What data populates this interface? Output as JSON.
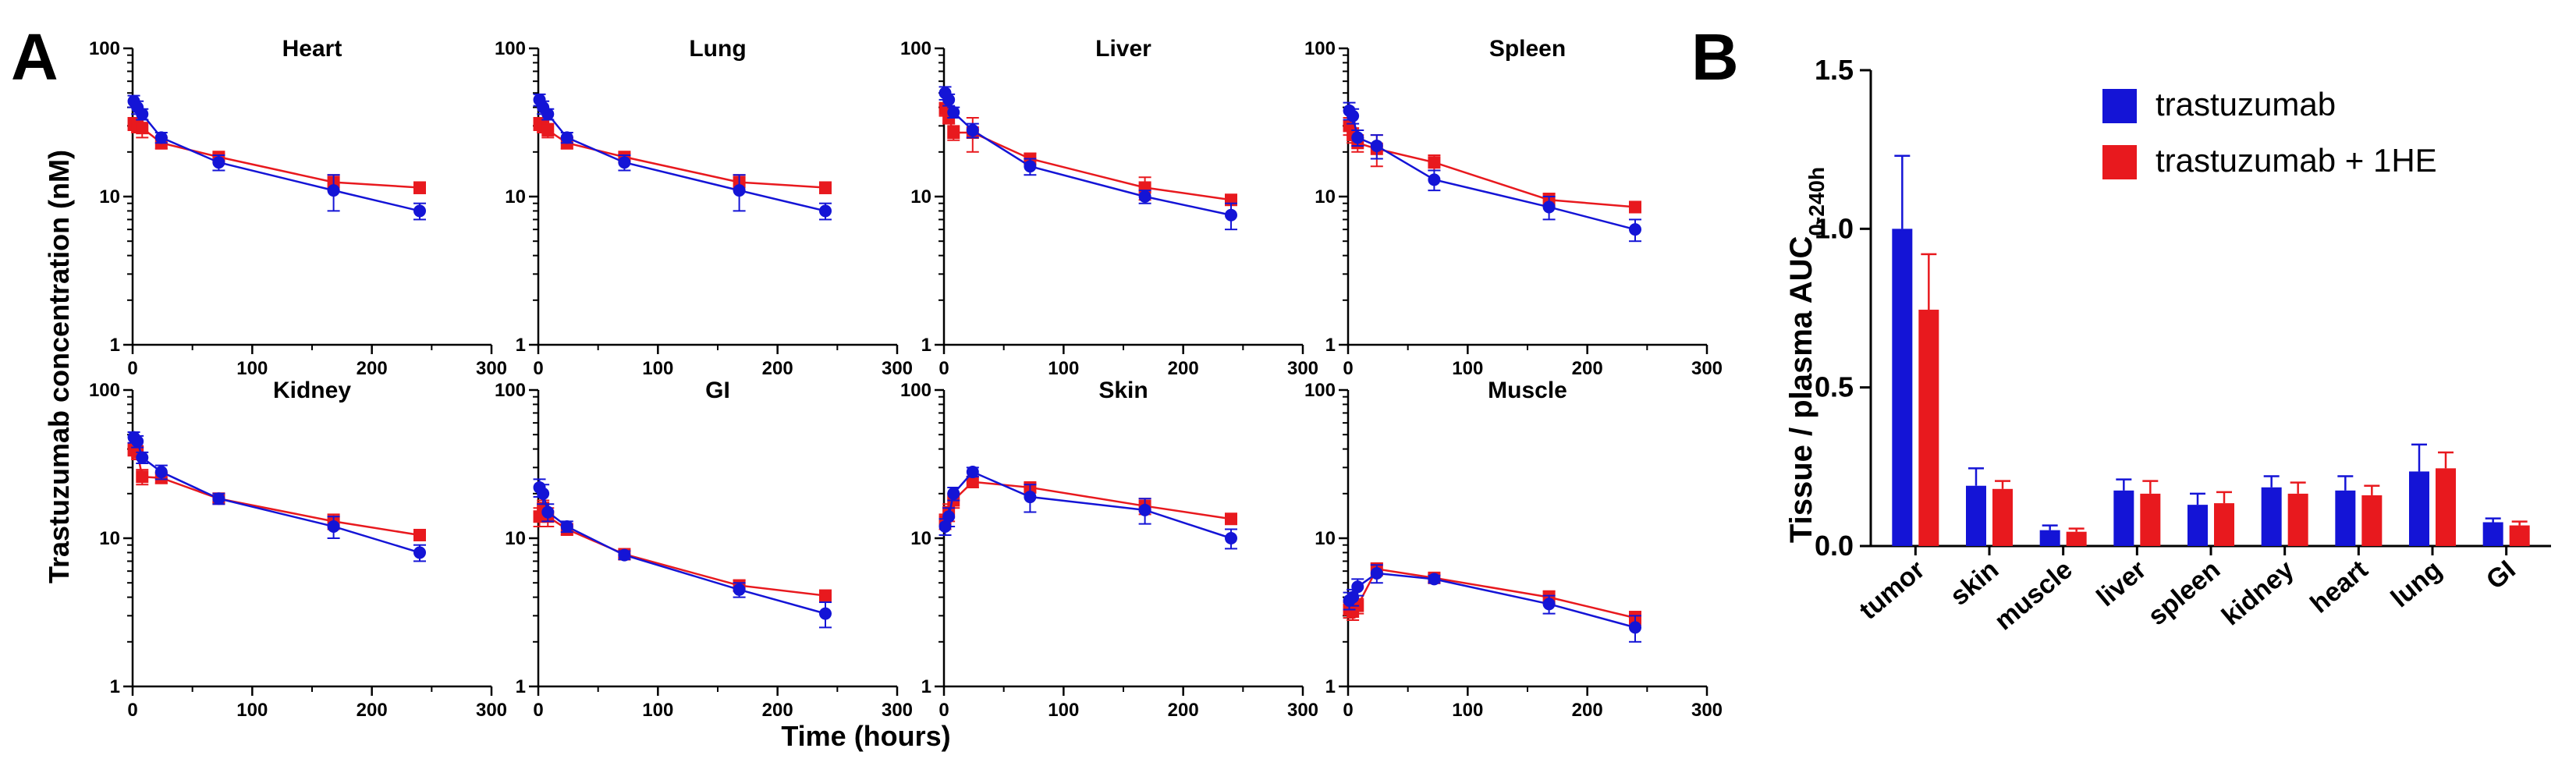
{
  "panel_a_label": "A",
  "panel_b_label": "B",
  "colors": {
    "trastuzumab": "#1414d6",
    "trastuzumab_1he": "#e8191e",
    "axis": "#000000"
  },
  "chart_data": [
    {
      "type": "line",
      "panel": "A",
      "ylabel": "Trastuzumab concentration (nM)",
      "xlabel": "Time (hours)",
      "yscale": "log",
      "ylim": [
        1,
        100
      ],
      "xlim": [
        0,
        300
      ],
      "xticks": [
        0,
        100,
        200,
        300
      ],
      "yticks": [
        1,
        10,
        100
      ],
      "series_names": [
        "trastuzumab",
        "trastuzumab + 1HE"
      ],
      "subplots": [
        {
          "title": "Heart",
          "x": [
            1,
            4,
            8,
            24,
            72,
            168,
            240
          ],
          "series": [
            {
              "name": "trastuzumab",
              "values": [
                44,
                40,
                36,
                25,
                17,
                11,
                8
              ],
              "err": [
                4,
                4,
                3,
                2,
                2,
                3,
                1
              ]
            },
            {
              "name": "trastuzumab + 1HE",
              "values": [
                31,
                30,
                29,
                23,
                18.5,
                12.5,
                11.5
              ],
              "err": [
                3,
                3,
                4,
                2,
                1,
                1.5,
                1
              ]
            }
          ]
        },
        {
          "title": "Lung",
          "x": [
            1,
            4,
            8,
            24,
            72,
            168,
            240
          ],
          "series": [
            {
              "name": "trastuzumab",
              "values": [
                45,
                40,
                36,
                25,
                17,
                11,
                8
              ],
              "err": [
                4,
                4,
                3,
                2,
                2,
                3,
                1
              ]
            },
            {
              "name": "trastuzumab + 1HE",
              "values": [
                31,
                30,
                28,
                23,
                18.5,
                12.5,
                11.5
              ],
              "err": [
                3,
                3,
                3,
                2,
                1,
                1.5,
                1
              ]
            }
          ]
        },
        {
          "title": "Liver",
          "x": [
            1,
            4,
            8,
            24,
            72,
            168,
            240
          ],
          "series": [
            {
              "name": "trastuzumab",
              "values": [
                50,
                45,
                37,
                28,
                16,
                10,
                7.5
              ],
              "err": [
                5,
                4,
                3,
                3,
                2,
                1,
                1.5
              ]
            },
            {
              "name": "trastuzumab + 1HE",
              "values": [
                39,
                34,
                27,
                27,
                18,
                11.5,
                9.5
              ],
              "err": [
                4,
                3,
                3,
                7,
                1.5,
                2,
                0.7
              ]
            }
          ]
        },
        {
          "title": "Spleen",
          "x": [
            1,
            4,
            8,
            24,
            72,
            168,
            240
          ],
          "series": [
            {
              "name": "trastuzumab",
              "values": [
                38,
                35,
                25,
                22,
                13,
                8.5,
                6
              ],
              "err": [
                5,
                4,
                3,
                4,
                2,
                1.5,
                1
              ]
            },
            {
              "name": "trastuzumab + 1HE",
              "values": [
                30,
                26,
                23,
                21,
                17,
                9.5,
                8.5
              ],
              "err": [
                4,
                3,
                3,
                5,
                2,
                1,
                0.7
              ]
            }
          ]
        },
        {
          "title": "Kidney",
          "x": [
            1,
            4,
            8,
            24,
            72,
            168,
            240
          ],
          "series": [
            {
              "name": "trastuzumab",
              "values": [
                48,
                45,
                35,
                28,
                18.5,
                12,
                8
              ],
              "err": [
                4,
                4,
                3,
                3,
                1.5,
                2,
                1
              ]
            },
            {
              "name": "trastuzumab + 1HE",
              "values": [
                40,
                38,
                26,
                25.5,
                18.5,
                13,
                10.5
              ],
              "err": [
                4,
                4,
                3,
                2,
                1,
                1.5,
                0.8
              ]
            }
          ]
        },
        {
          "title": "GI",
          "x": [
            1,
            4,
            8,
            24,
            72,
            168,
            240
          ],
          "series": [
            {
              "name": "trastuzumab",
              "values": [
                22,
                20,
                15,
                12,
                7.7,
                4.5,
                3.1
              ],
              "err": [
                3,
                3,
                2,
                1,
                0.5,
                0.5,
                0.6
              ]
            },
            {
              "name": "trastuzumab + 1HE",
              "values": [
                14,
                16,
                14,
                11.5,
                7.8,
                4.8,
                4.1
              ],
              "err": [
                2,
                2,
                2,
                1,
                0.4,
                0.4,
                0.3
              ]
            }
          ]
        },
        {
          "title": "Skin",
          "x": [
            1,
            4,
            8,
            24,
            72,
            168,
            240
          ],
          "series": [
            {
              "name": "trastuzumab",
              "values": [
                12,
                14,
                20,
                28,
                19,
                15.5,
                10
              ],
              "err": [
                1.5,
                2,
                2,
                2,
                4,
                3,
                1.5
              ]
            },
            {
              "name": "trastuzumab + 1HE",
              "values": [
                13,
                15,
                18,
                24,
                22,
                16.5,
                13.5
              ],
              "err": [
                1.5,
                2,
                2,
                2,
                1.5,
                2,
                1
              ]
            }
          ]
        },
        {
          "title": "Muscle",
          "x": [
            1,
            4,
            8,
            24,
            72,
            168,
            240
          ],
          "series": [
            {
              "name": "trastuzumab",
              "values": [
                3.8,
                4,
                4.7,
                5.8,
                5.3,
                3.6,
                2.5
              ],
              "err": [
                0.5,
                0.5,
                0.6,
                0.8,
                0.3,
                0.5,
                0.5
              ]
            },
            {
              "name": "trastuzumab + 1HE",
              "values": [
                3.3,
                3.2,
                3.5,
                6.2,
                5.4,
                4,
                2.9
              ],
              "err": [
                0.4,
                0.4,
                0.4,
                0.6,
                0.3,
                0.4,
                0.3
              ]
            }
          ]
        }
      ]
    },
    {
      "type": "bar",
      "panel": "B",
      "ylabel": "Tissue / plasma AUC",
      "ylabel_sub": "0-240h",
      "ylim": [
        0,
        1.5
      ],
      "yticks": [
        "0.0",
        "0.5",
        "1.0",
        "1.5"
      ],
      "categories": [
        "tumor",
        "skin",
        "muscle",
        "liver",
        "spleen",
        "kidney",
        "heart",
        "lung",
        "GI"
      ],
      "series": [
        {
          "name": "trastuzumab",
          "values": [
            1.0,
            0.19,
            0.05,
            0.175,
            0.13,
            0.185,
            0.175,
            0.235,
            0.075
          ],
          "err": [
            0.23,
            0.055,
            0.015,
            0.035,
            0.035,
            0.035,
            0.045,
            0.085,
            0.012
          ]
        },
        {
          "name": "trastuzumab + 1HE",
          "values": [
            0.745,
            0.18,
            0.045,
            0.165,
            0.135,
            0.165,
            0.16,
            0.245,
            0.065
          ],
          "err": [
            0.175,
            0.025,
            0.01,
            0.04,
            0.035,
            0.035,
            0.03,
            0.05,
            0.012
          ]
        }
      ],
      "legend": [
        "trastuzumab",
        "trastuzumab + 1HE"
      ],
      "legend_position": "top-right"
    }
  ]
}
